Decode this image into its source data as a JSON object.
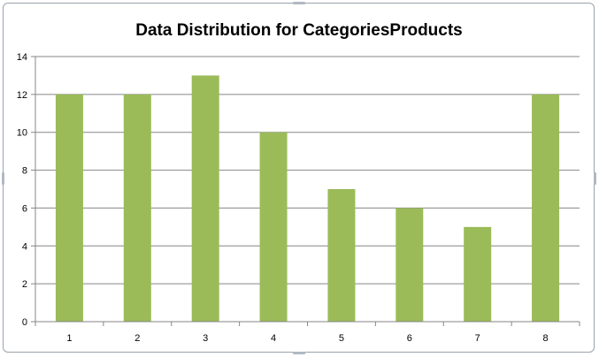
{
  "chart_data": {
    "type": "bar",
    "title": "Data Distribution for CategoriesProducts",
    "categories": [
      "1",
      "2",
      "3",
      "4",
      "5",
      "6",
      "7",
      "8"
    ],
    "values": [
      12,
      12,
      13,
      10,
      7,
      6,
      5,
      12
    ],
    "ylim": [
      0,
      14
    ],
    "yticks": [
      "0",
      "2",
      "4",
      "6",
      "8",
      "10",
      "12",
      "14"
    ],
    "grid": true,
    "legend": "none",
    "bar_color": "#9bbb59",
    "grid_color": "#868686"
  }
}
